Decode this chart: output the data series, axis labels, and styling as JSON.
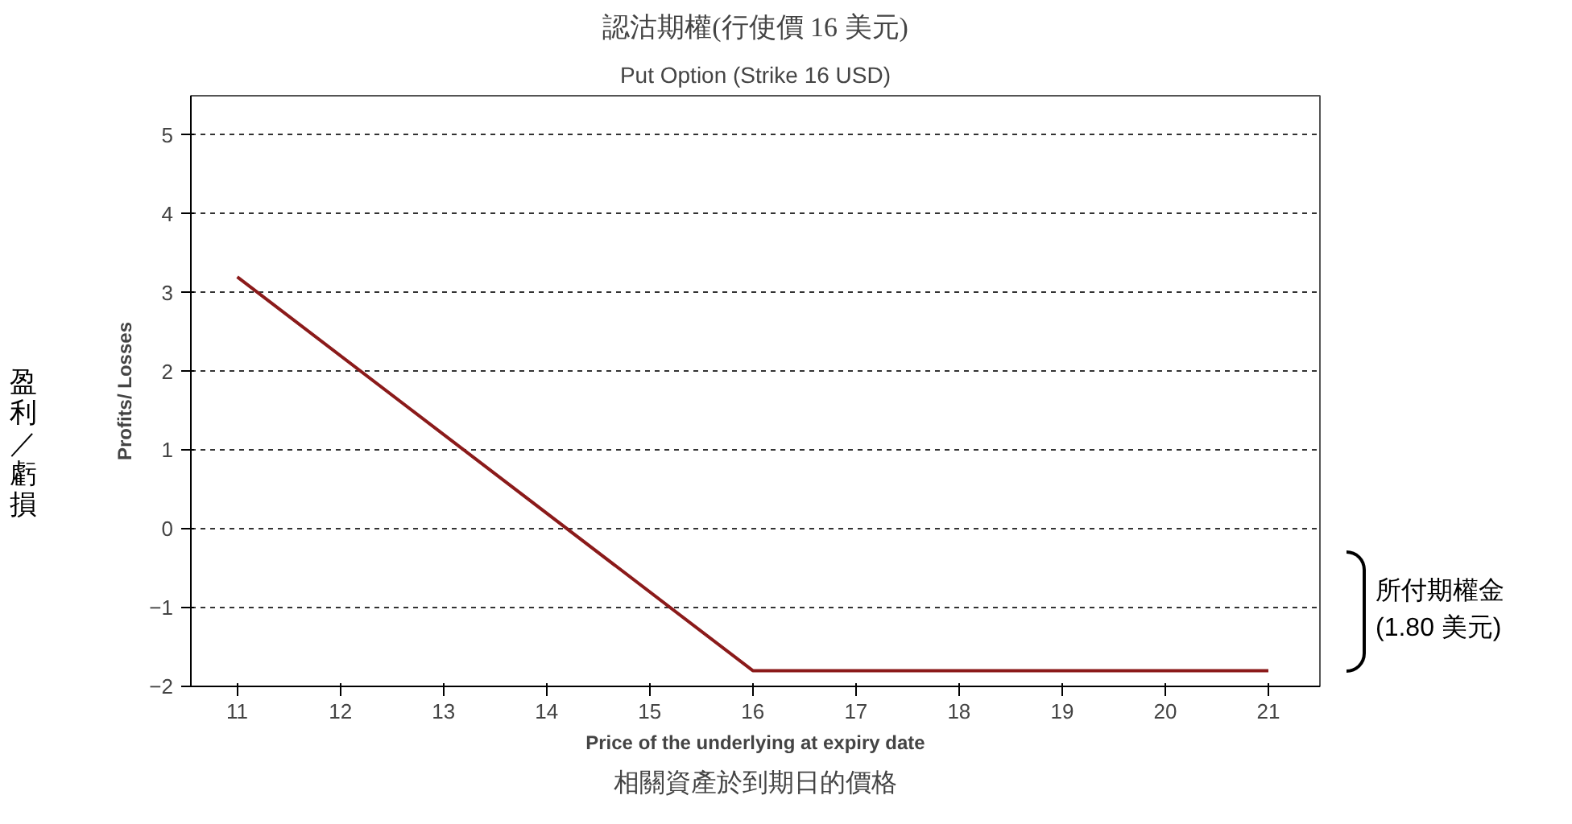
{
  "chart_data": {
    "type": "line",
    "title": "認沽期權(行使價 16 美元)",
    "subtitle": "Put Option (Strike 16 USD)",
    "xlabel": "Price of the underlying at expiry date",
    "ylabel": "Profits/ Losses",
    "annotations": [
      "相關資產於到期日的價格",
      "盈利／虧損",
      "所付期權金\n(1.80 美元)"
    ],
    "x": [
      11,
      16,
      21
    ],
    "series": [
      {
        "color": "#8b1a1a",
        "values": [
          3.2,
          -1.8,
          -1.8
        ]
      }
    ],
    "xlim": [
      10.55,
      21.5
    ],
    "xticks": [
      11,
      12,
      13,
      14,
      15,
      16,
      17,
      18,
      19,
      20,
      21
    ],
    "ylim": [
      -2,
      5.5
    ],
    "yticks": [
      -2,
      -1,
      0,
      1,
      2,
      3,
      4,
      5
    ],
    "grid": "y",
    "marker": "none",
    "line_style": "solid"
  }
}
